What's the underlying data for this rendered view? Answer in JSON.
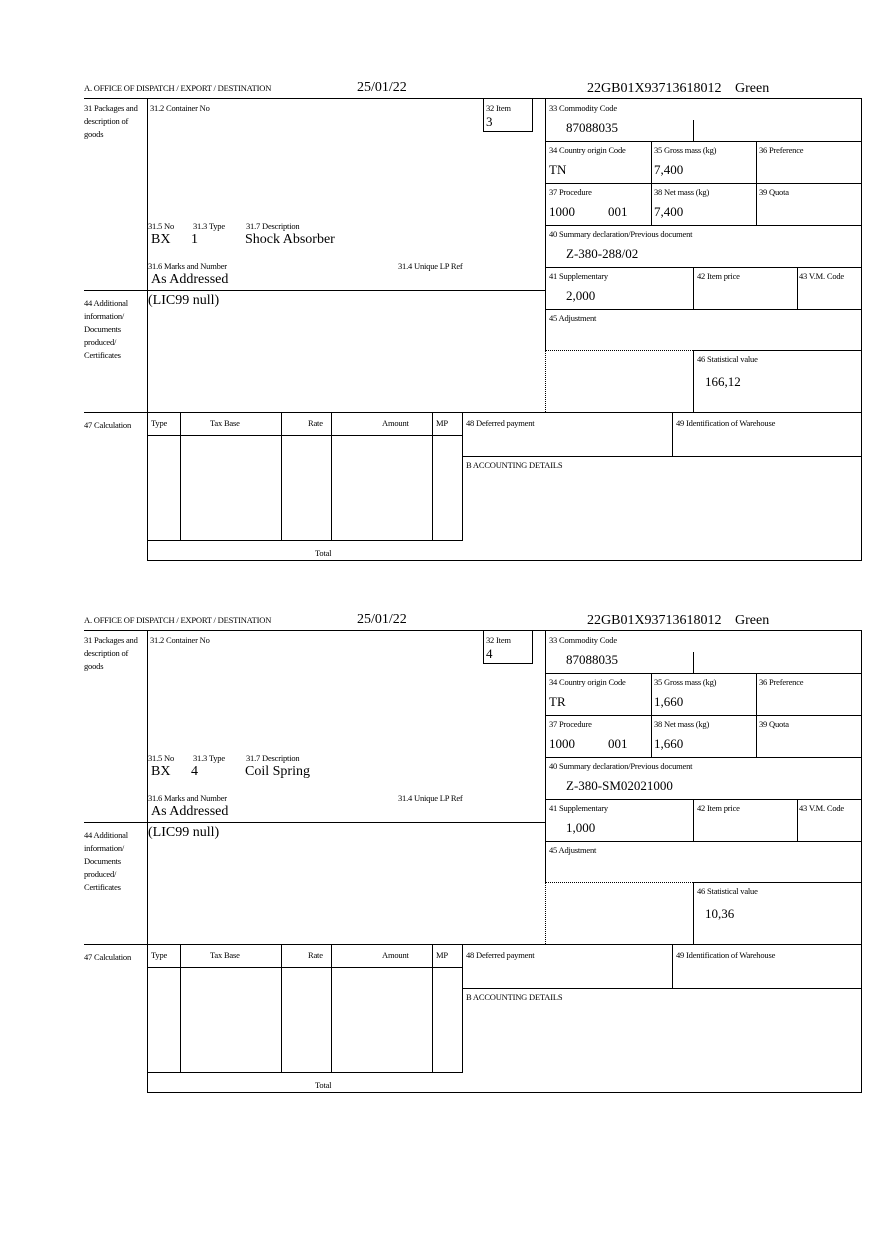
{
  "header": {
    "office_label": "A.  OFFICE OF DISPATCH / EXPORT / DESTINATION",
    "date": "25/01/22",
    "reference": "22GB01X93713618012",
    "route": "Green"
  },
  "labels": {
    "packages": "31 Packages and description of goods",
    "container_no": "31.2 Container No",
    "item": "32 Item",
    "commodity_code": "33 Commodity Code",
    "country_origin": "34 Country origin Code",
    "gross_mass": "35 Gross mass (kg)",
    "preference": "36 Preference",
    "procedure": "37 Procedure",
    "net_mass": "38 Net mass (kg)",
    "quota": "39 Quota",
    "summary_declaration": "40 Summary declaration/Previous document",
    "supplementary": "41 Supplementary",
    "item_price": "42 Item price",
    "vm_code": "43 V.M. Code",
    "adjustment": "45 Adjustment",
    "statistical_value": "46 Statistical value",
    "pkg_no": "31.5 No",
    "pkg_type": "31.3 Type",
    "pkg_description": "31.7 Description",
    "marks": "31.6 Marks and Number",
    "unique_lp_ref": "31.4 Unique LP Ref",
    "additional_info": "44 Additional information/ Documents produced/ Certificates",
    "calculation": "47 Calculation",
    "col_type": "Type",
    "col_tax_base": "Tax Base",
    "col_rate": "Rate",
    "col_amount": "Amount",
    "col_mp": "MP",
    "deferred_payment": "48 Deferred payment",
    "warehouse": "49 Identification of Warehouse",
    "accounting": "B ACCOUNTING DETAILS",
    "total": "Total"
  },
  "forms": [
    {
      "item": "3",
      "commodity_code": "87088035",
      "country_origin": "TN",
      "gross_mass": "7,400",
      "procedure": "1000",
      "procedure_extra": "001",
      "net_mass": "7,400",
      "summary_declaration": "Z-380-288/02",
      "supplementary": "2,000",
      "statistical_value": "166,12",
      "pkg_no": "BX",
      "pkg_type": "1",
      "pkg_description": "Shock Absorber",
      "marks": "As Addressed",
      "additional_info": "(LIC99 null)"
    },
    {
      "item": "4",
      "commodity_code": "87088035",
      "country_origin": "TR",
      "gross_mass": "1,660",
      "procedure": "1000",
      "procedure_extra": "001",
      "net_mass": "1,660",
      "summary_declaration": "Z-380-SM02021000",
      "supplementary": "1,000",
      "statistical_value": "10,36",
      "pkg_no": "BX",
      "pkg_type": "4",
      "pkg_description": "Coil Spring",
      "marks": "As Addressed",
      "additional_info": "(LIC99 null)"
    }
  ]
}
